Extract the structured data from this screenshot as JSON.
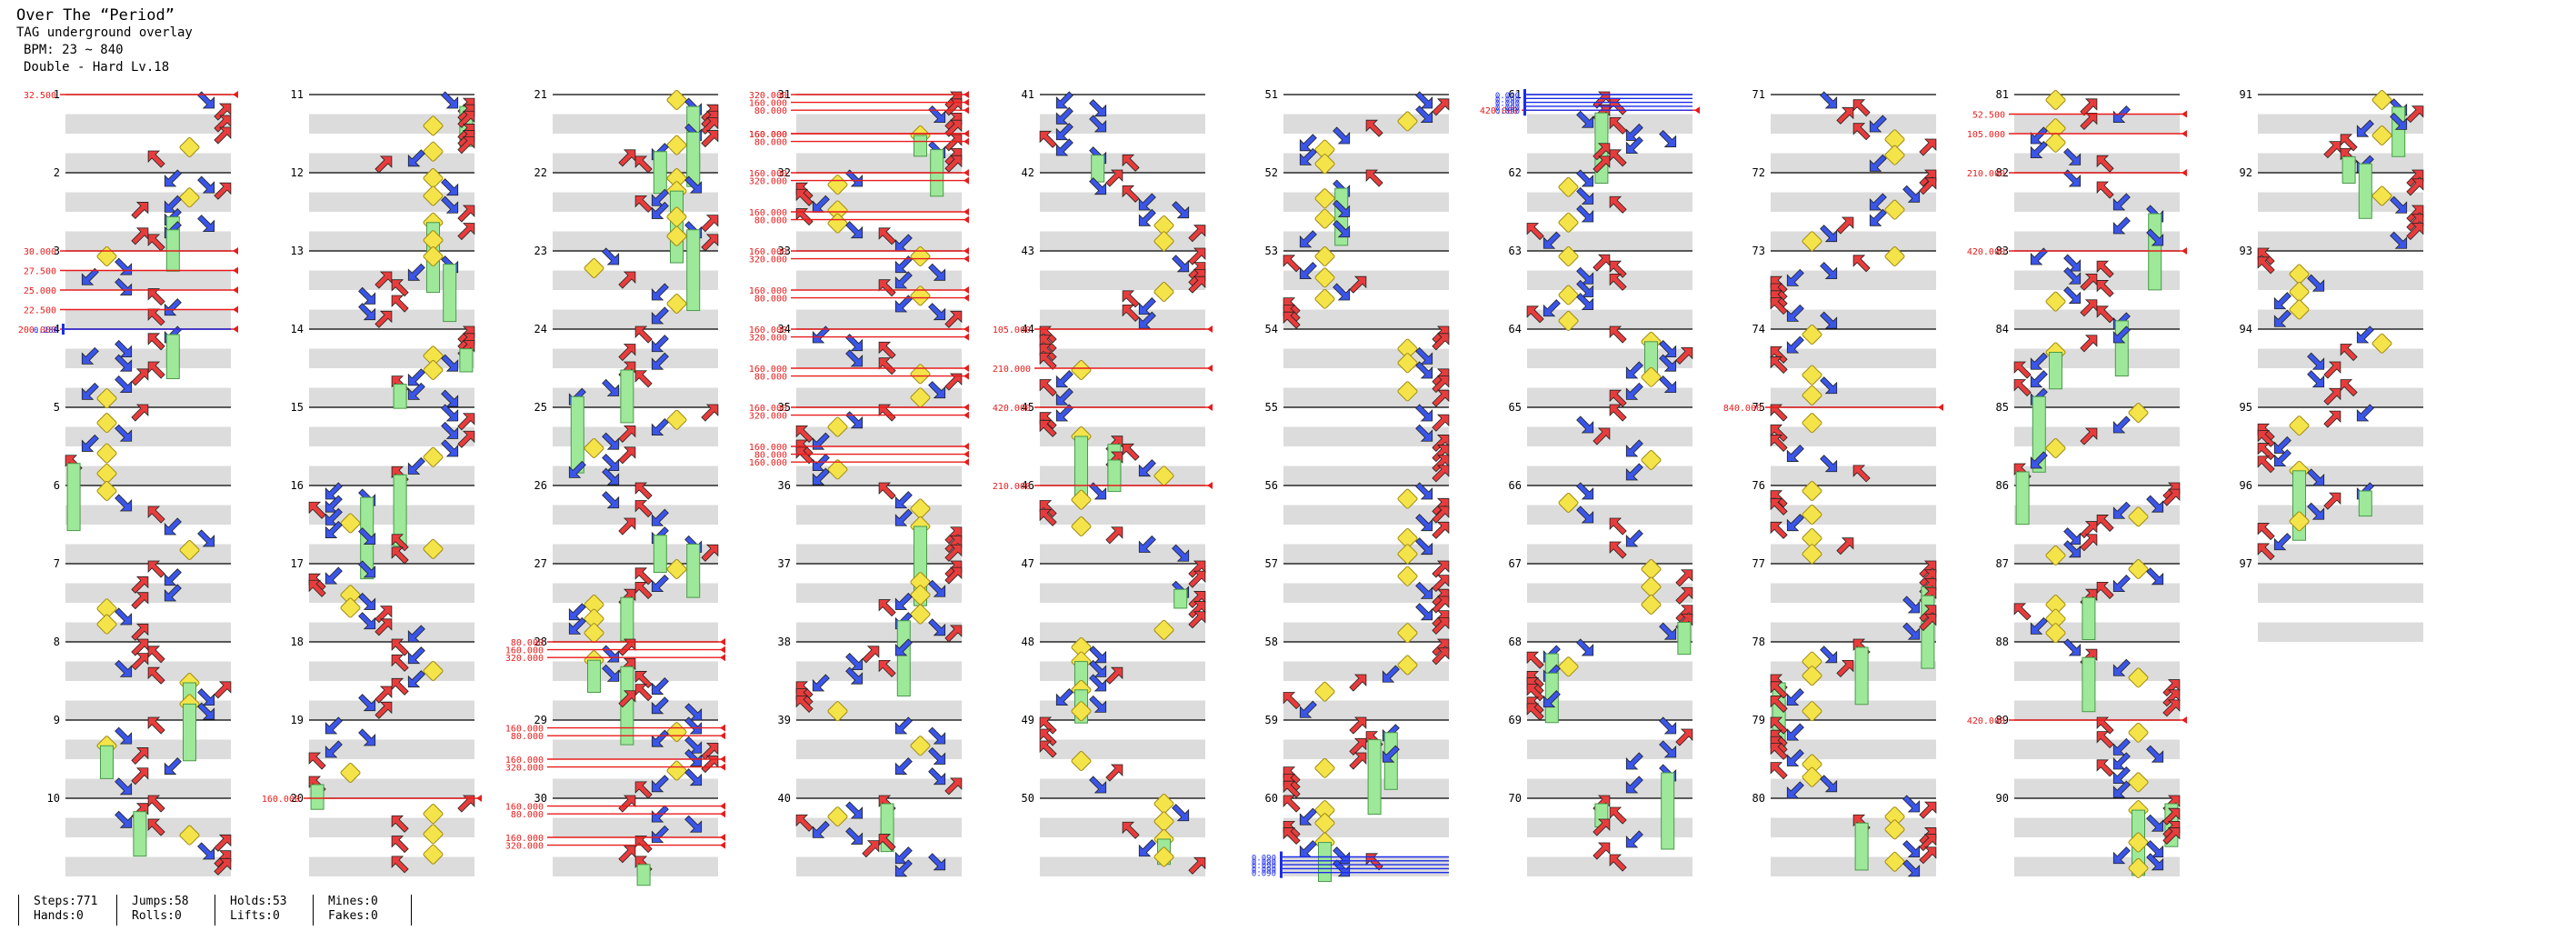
{
  "header": {
    "title": "Over The “Period”",
    "subtitle": "TAG underground overlay",
    "bpm_line": "BPM: 23 ~ 840",
    "difficulty_line": "Double - Hard Lv.18"
  },
  "stats": [
    {
      "top": "Steps:771",
      "bottom": "Hands:0"
    },
    {
      "top": "Jumps:58",
      "bottom": "Rolls:0"
    },
    {
      "top": "Holds:53",
      "bottom": "Lifts:0"
    },
    {
      "top": "Mines:0",
      "bottom": "Fakes:0"
    }
  ],
  "colors": {
    "left": "#e83c3c",
    "down": "#3a55e8",
    "up": "#3a55e8",
    "center": "#f4e44a",
    "right": "#e83c3c",
    "hold": "#9ee89a",
    "roll": "#b05ae8",
    "bpm": "#e81c1c",
    "stop": "#1c2ce8",
    "measure_shade": "#dcdcdc"
  },
  "icons": {
    "left": "arrow-down-left-icon",
    "up_left": "arrow-up-left-icon",
    "center": "center-panel-icon",
    "up_right": "arrow-up-right-icon",
    "right": "arrow-down-right-icon",
    "hold": "hold-bar-icon"
  },
  "chart_data": {
    "type": "table",
    "measures_per_column": 10,
    "columns": 10,
    "measure_labels": [
      "1",
      "2",
      "3",
      "4",
      "5",
      "6",
      "7",
      "8",
      "9",
      "10",
      "11",
      "12",
      "13",
      "14",
      "15",
      "16",
      "17",
      "18",
      "19",
      "20",
      "21",
      "22",
      "23",
      "24",
      "25",
      "26",
      "27",
      "28",
      "29",
      "30",
      "31",
      "32",
      "33",
      "34",
      "35",
      "36",
      "37",
      "38",
      "39",
      "40",
      "41",
      "42",
      "43",
      "44",
      "45",
      "46",
      "47",
      "48",
      "49",
      "50",
      "51",
      "52",
      "53",
      "54",
      "55",
      "56",
      "57",
      "58",
      "59",
      "60",
      "61",
      "62",
      "63",
      "64",
      "65",
      "66",
      "67",
      "68",
      "69",
      "70",
      "71",
      "72",
      "73",
      "74",
      "75",
      "76",
      "77",
      "78",
      "79",
      "80",
      "81",
      "82",
      "83",
      "84",
      "85",
      "86",
      "87",
      "88",
      "89",
      "90",
      "91",
      "92",
      "93",
      "94",
      "95",
      "96",
      "97"
    ],
    "bpm_changes": [
      {
        "measure": 1,
        "beat": 0,
        "label": "32.500"
      },
      {
        "measure": 3,
        "beat": 0,
        "label": "30.000"
      },
      {
        "measure": 3,
        "beat": 1,
        "label": "27.500"
      },
      {
        "measure": 3,
        "beat": 2,
        "label": "25.000"
      },
      {
        "measure": 3,
        "beat": 3,
        "label": "22.500"
      },
      {
        "measure": 4,
        "beat": 0,
        "label": "200.000"
      },
      {
        "measure": 20,
        "beat": 0,
        "label": "160.000"
      },
      {
        "measure": 28,
        "beat": 0,
        "label": "80.000"
      },
      {
        "measure": 28,
        "beat": 0.4,
        "label": "160.000"
      },
      {
        "measure": 28,
        "beat": 0.8,
        "label": "320.000"
      },
      {
        "measure": 29,
        "beat": 0.4,
        "label": "160.000"
      },
      {
        "measure": 29,
        "beat": 0.8,
        "label": "80.000"
      },
      {
        "measure": 29,
        "beat": 2,
        "label": "160.000"
      },
      {
        "measure": 29,
        "beat": 2.4,
        "label": "320.000"
      },
      {
        "measure": 30,
        "beat": 0.4,
        "label": "160.000"
      },
      {
        "measure": 30,
        "beat": 0.8,
        "label": "80.000"
      },
      {
        "measure": 30,
        "beat": 2,
        "label": "160.000"
      },
      {
        "measure": 30,
        "beat": 2.4,
        "label": "320.000"
      },
      {
        "measure": 31,
        "beat": 0.4,
        "label": "160.000"
      },
      {
        "measure": 31,
        "beat": 0.8,
        "label": "80.000"
      },
      {
        "measure": 31,
        "beat": 2,
        "label": "160.000"
      },
      {
        "measure": 31,
        "beat": 0,
        "label": "320.000"
      },
      {
        "measure": 31,
        "beat": 2,
        "label": "160.000"
      },
      {
        "measure": 31,
        "beat": 2.4,
        "label": "80.000"
      },
      {
        "measure": 32,
        "beat": 0,
        "label": "160.000"
      },
      {
        "measure": 32,
        "beat": 0.4,
        "label": "320.000"
      },
      {
        "measure": 32,
        "beat": 2,
        "label": "160.000"
      },
      {
        "measure": 32,
        "beat": 2.4,
        "label": "80.000"
      },
      {
        "measure": 33,
        "beat": 0,
        "label": "160.000"
      },
      {
        "measure": 33,
        "beat": 0.4,
        "label": "320.000"
      },
      {
        "measure": 33,
        "beat": 2,
        "label": "160.000"
      },
      {
        "measure": 33,
        "beat": 2.4,
        "label": "80.000"
      },
      {
        "measure": 34,
        "beat": 0,
        "label": "160.000"
      },
      {
        "measure": 34,
        "beat": 0.4,
        "label": "320.000"
      },
      {
        "measure": 34,
        "beat": 2,
        "label": "160.000"
      },
      {
        "measure": 34,
        "beat": 2.4,
        "label": "80.000"
      },
      {
        "measure": 35,
        "beat": 0,
        "label": "160.000"
      },
      {
        "measure": 35,
        "beat": 0.4,
        "label": "320.000"
      },
      {
        "measure": 35,
        "beat": 2,
        "label": "160.000"
      },
      {
        "measure": 35,
        "beat": 2.4,
        "label": "80.000"
      },
      {
        "measure": 35,
        "beat": 2.8,
        "label": "160.000"
      },
      {
        "measure": 44,
        "beat": 0,
        "label": "105.000"
      },
      {
        "measure": 44,
        "beat": 2,
        "label": "210.000"
      },
      {
        "measure": 45,
        "beat": 0,
        "label": "420.000"
      },
      {
        "measure": 46,
        "beat": 0,
        "label": "210.000"
      },
      {
        "measure": 61,
        "beat": 0.8,
        "label": "420.000"
      },
      {
        "measure": 75,
        "beat": 0,
        "label": "840.000"
      },
      {
        "measure": 81,
        "beat": 1,
        "label": "52.500"
      },
      {
        "measure": 81,
        "beat": 2,
        "label": "105.000"
      },
      {
        "measure": 82,
        "beat": 0,
        "label": "210.000"
      },
      {
        "measure": 83,
        "beat": 0,
        "label": "420.000"
      },
      {
        "measure": 89,
        "beat": 0,
        "label": "420.000"
      }
    ],
    "stops": [
      {
        "measure": 4,
        "beat": 0,
        "label": "0.280"
      },
      {
        "measure": 61,
        "beat": 0,
        "label": "0.090"
      },
      {
        "measure": 61,
        "beat": 0.2,
        "label": "0.090"
      },
      {
        "measure": 61,
        "beat": 0.4,
        "label": "0.090"
      },
      {
        "measure": 61,
        "beat": 0.6,
        "label": "0.090"
      },
      {
        "measure": 61,
        "beat": 0.8,
        "label": "0.090"
      },
      {
        "measure": 60,
        "beat": 3.0,
        "label": "0.090"
      },
      {
        "measure": 60,
        "beat": 3.2,
        "label": "0.090"
      },
      {
        "measure": 60,
        "beat": 3.4,
        "label": "0.090"
      },
      {
        "measure": 60,
        "beat": 3.6,
        "label": "0.090"
      },
      {
        "measure": 60,
        "beat": 3.8,
        "label": "0.090"
      }
    ]
  }
}
